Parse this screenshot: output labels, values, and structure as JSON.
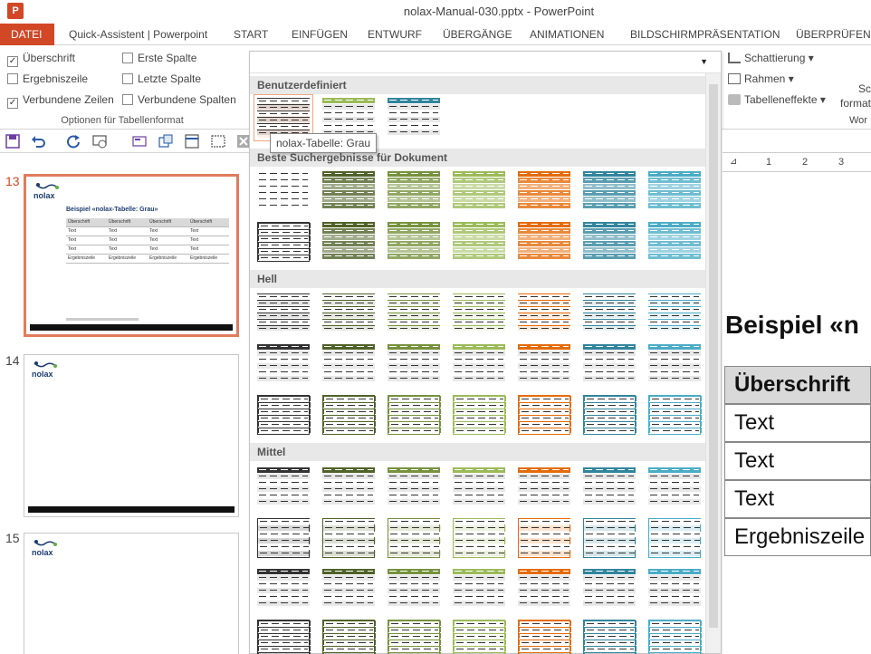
{
  "window": {
    "title": "nolax-Manual-030.pptx - PowerPoint",
    "app_icon": "P"
  },
  "tabs": [
    {
      "label": "DATEI"
    },
    {
      "label": "Quick-Assistent | Powerpoint"
    },
    {
      "label": "START"
    },
    {
      "label": "EINFÜGEN"
    },
    {
      "label": "ENTWURF"
    },
    {
      "label": "ÜBERGÄNGE"
    },
    {
      "label": "ANIMATIONEN"
    },
    {
      "label": "BILDSCHIRMPRÄSENTATION"
    },
    {
      "label": "ÜBERPRÜFEN"
    }
  ],
  "table_options": {
    "group_label": "Optionen für Tabellenformat",
    "items": [
      {
        "label": "Überschrift",
        "checked": true
      },
      {
        "label": "Erste Spalte",
        "checked": false
      },
      {
        "label": "Ergebniszeile",
        "checked": false
      },
      {
        "label": "Letzte Spalte",
        "checked": false
      },
      {
        "label": "Verbundene Zeilen",
        "checked": true
      },
      {
        "label": "Verbundene Spalten",
        "checked": false
      }
    ]
  },
  "ribbon_right": {
    "shading": "Schattierung",
    "borders": "Rahmen",
    "effects": "Tabelleneffekte",
    "partial1": "Sc",
    "partial2": "format",
    "partial3": "Wor"
  },
  "gallery": {
    "sections": [
      {
        "label": "Benutzerdefiniert"
      },
      {
        "label": "Beste Suchergebnisse für Dokument"
      },
      {
        "label": "Hell"
      },
      {
        "label": "Mittel"
      }
    ],
    "tooltip": "nolax-Tabelle: Grau",
    "colors": [
      "#333333",
      "#4f6228",
      "#76923c",
      "#9bbb59",
      "#e46c0a",
      "#31859c",
      "#4bacc6"
    ]
  },
  "thumbnails": [
    {
      "number": "13",
      "title": "Beispiel «nolax-Tabelle: Grau»",
      "brand": "nolax",
      "table": [
        [
          "Überschrift",
          "Überschrift",
          "Überschrift",
          "Überschrift"
        ],
        [
          "Text",
          "Text",
          "Text",
          "Text"
        ],
        [
          "Text",
          "Text",
          "Text",
          "Text"
        ],
        [
          "Text",
          "Text",
          "Text",
          "Text"
        ],
        [
          "Ergebniszeile",
          "Ergebniszeile",
          "Ergebniszeile",
          "Ergebniszeile"
        ]
      ]
    },
    {
      "number": "14",
      "brand": "nolax"
    },
    {
      "number": "15",
      "brand": "nolax"
    }
  ],
  "ruler": {
    "marks": [
      "1",
      "2",
      "3"
    ]
  },
  "slide": {
    "title": "Beispiel «n",
    "rows": [
      "Überschrift",
      "Text",
      "Text",
      "Text",
      "Ergebniszeile"
    ]
  }
}
